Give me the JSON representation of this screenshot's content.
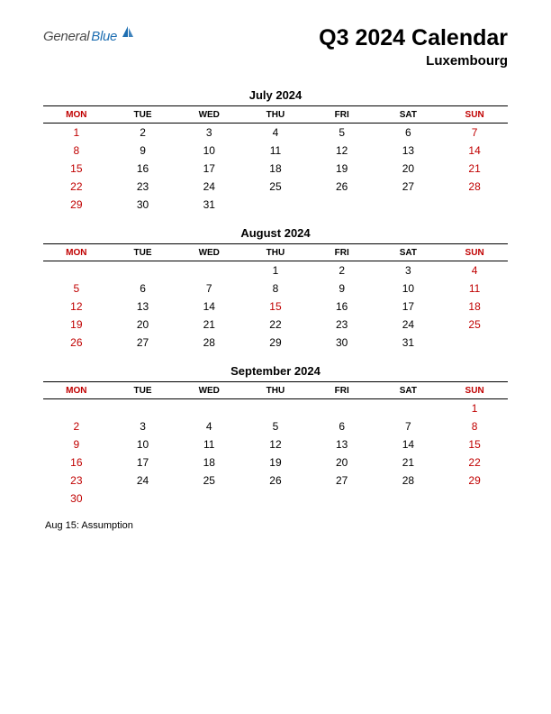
{
  "logo": {
    "part1": "General",
    "part2": "Blue",
    "icon_color": "#1f6fb2"
  },
  "header": {
    "title": "Q3 2024 Calendar",
    "subtitle": "Luxembourg"
  },
  "weekday_headers": [
    "MON",
    "TUE",
    "WED",
    "THU",
    "FRI",
    "SAT",
    "SUN"
  ],
  "header_red_cols": [
    0,
    6
  ],
  "colors": {
    "red": "#c00000",
    "black": "#000000",
    "background": "#ffffff"
  },
  "typography": {
    "title_fontsize": 25,
    "subtitle_fontsize": 15,
    "month_title_fontsize": 13,
    "header_fontsize": 10,
    "cell_fontsize": 12,
    "footnote_fontsize": 11
  },
  "months": [
    {
      "title": "July 2024",
      "weeks": [
        [
          {
            "d": "1",
            "r": true
          },
          {
            "d": "2"
          },
          {
            "d": "3"
          },
          {
            "d": "4"
          },
          {
            "d": "5"
          },
          {
            "d": "6"
          },
          {
            "d": "7",
            "r": true
          }
        ],
        [
          {
            "d": "8",
            "r": true
          },
          {
            "d": "9"
          },
          {
            "d": "10"
          },
          {
            "d": "11"
          },
          {
            "d": "12"
          },
          {
            "d": "13"
          },
          {
            "d": "14",
            "r": true
          }
        ],
        [
          {
            "d": "15",
            "r": true
          },
          {
            "d": "16"
          },
          {
            "d": "17"
          },
          {
            "d": "18"
          },
          {
            "d": "19"
          },
          {
            "d": "20"
          },
          {
            "d": "21",
            "r": true
          }
        ],
        [
          {
            "d": "22",
            "r": true
          },
          {
            "d": "23"
          },
          {
            "d": "24"
          },
          {
            "d": "25"
          },
          {
            "d": "26"
          },
          {
            "d": "27"
          },
          {
            "d": "28",
            "r": true
          }
        ],
        [
          {
            "d": "29",
            "r": true
          },
          {
            "d": "30"
          },
          {
            "d": "31"
          },
          {
            "d": ""
          },
          {
            "d": ""
          },
          {
            "d": ""
          },
          {
            "d": ""
          }
        ]
      ]
    },
    {
      "title": "August 2024",
      "weeks": [
        [
          {
            "d": ""
          },
          {
            "d": ""
          },
          {
            "d": ""
          },
          {
            "d": "1"
          },
          {
            "d": "2"
          },
          {
            "d": "3"
          },
          {
            "d": "4",
            "r": true
          }
        ],
        [
          {
            "d": "5",
            "r": true
          },
          {
            "d": "6"
          },
          {
            "d": "7"
          },
          {
            "d": "8"
          },
          {
            "d": "9"
          },
          {
            "d": "10"
          },
          {
            "d": "11",
            "r": true
          }
        ],
        [
          {
            "d": "12",
            "r": true
          },
          {
            "d": "13"
          },
          {
            "d": "14"
          },
          {
            "d": "15",
            "r": true
          },
          {
            "d": "16"
          },
          {
            "d": "17"
          },
          {
            "d": "18",
            "r": true
          }
        ],
        [
          {
            "d": "19",
            "r": true
          },
          {
            "d": "20"
          },
          {
            "d": "21"
          },
          {
            "d": "22"
          },
          {
            "d": "23"
          },
          {
            "d": "24"
          },
          {
            "d": "25",
            "r": true
          }
        ],
        [
          {
            "d": "26",
            "r": true
          },
          {
            "d": "27"
          },
          {
            "d": "28"
          },
          {
            "d": "29"
          },
          {
            "d": "30"
          },
          {
            "d": "31"
          },
          {
            "d": ""
          }
        ]
      ]
    },
    {
      "title": "September 2024",
      "weeks": [
        [
          {
            "d": ""
          },
          {
            "d": ""
          },
          {
            "d": ""
          },
          {
            "d": ""
          },
          {
            "d": ""
          },
          {
            "d": ""
          },
          {
            "d": "1",
            "r": true
          }
        ],
        [
          {
            "d": "2",
            "r": true
          },
          {
            "d": "3"
          },
          {
            "d": "4"
          },
          {
            "d": "5"
          },
          {
            "d": "6"
          },
          {
            "d": "7"
          },
          {
            "d": "8",
            "r": true
          }
        ],
        [
          {
            "d": "9",
            "r": true
          },
          {
            "d": "10"
          },
          {
            "d": "11"
          },
          {
            "d": "12"
          },
          {
            "d": "13"
          },
          {
            "d": "14"
          },
          {
            "d": "15",
            "r": true
          }
        ],
        [
          {
            "d": "16",
            "r": true
          },
          {
            "d": "17"
          },
          {
            "d": "18"
          },
          {
            "d": "19"
          },
          {
            "d": "20"
          },
          {
            "d": "21"
          },
          {
            "d": "22",
            "r": true
          }
        ],
        [
          {
            "d": "23",
            "r": true
          },
          {
            "d": "24"
          },
          {
            "d": "25"
          },
          {
            "d": "26"
          },
          {
            "d": "27"
          },
          {
            "d": "28"
          },
          {
            "d": "29",
            "r": true
          }
        ],
        [
          {
            "d": "30",
            "r": true
          },
          {
            "d": ""
          },
          {
            "d": ""
          },
          {
            "d": ""
          },
          {
            "d": ""
          },
          {
            "d": ""
          },
          {
            "d": ""
          }
        ]
      ]
    }
  ],
  "footnote": "Aug 15: Assumption"
}
